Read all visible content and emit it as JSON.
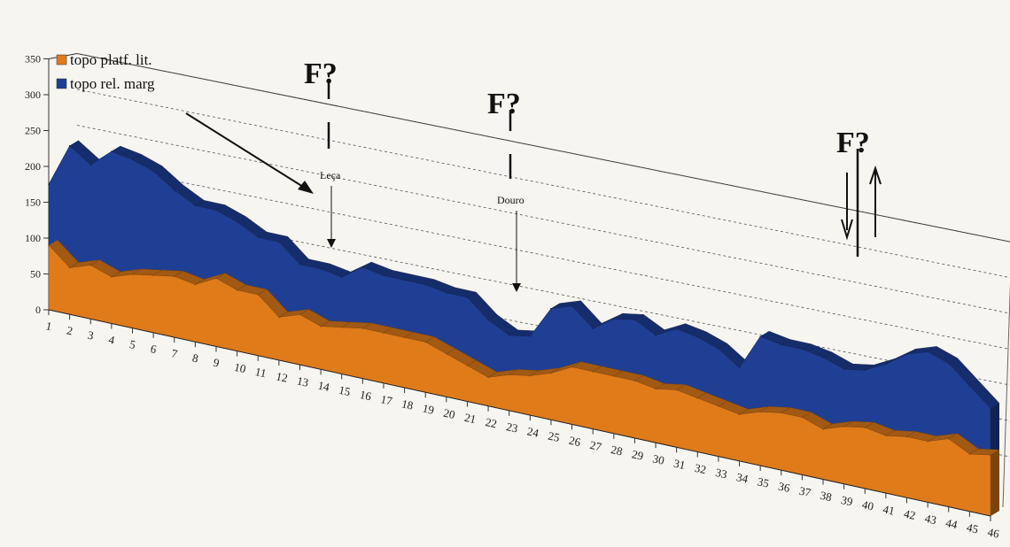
{
  "chart_data": {
    "type": "area",
    "render": "3d-area",
    "ylim": [
      0,
      350
    ],
    "yticks": [
      0,
      50,
      100,
      150,
      200,
      250,
      300,
      350
    ],
    "grid": true,
    "legend_position": "top-left",
    "x": [
      1,
      2,
      3,
      4,
      5,
      6,
      7,
      8,
      9,
      10,
      11,
      12,
      13,
      14,
      15,
      16,
      17,
      18,
      19,
      20,
      21,
      22,
      23,
      24,
      25,
      26,
      27,
      28,
      29,
      30,
      31,
      32,
      33,
      34,
      35,
      36,
      37,
      38,
      39,
      40,
      41,
      42,
      43,
      44,
      45,
      46
    ],
    "series": [
      {
        "name": "topo platf. lit.",
        "color": "#e07b1a",
        "values": [
          90,
          65,
          75,
          65,
          75,
          80,
          85,
          80,
          95,
          85,
          85,
          60,
          70,
          60,
          65,
          70,
          70,
          70,
          70,
          60,
          50,
          40,
          50,
          55,
          65,
          80,
          80,
          80,
          80,
          75,
          80,
          75,
          70,
          65,
          75,
          80,
          80,
          70,
          80,
          85,
          80,
          85,
          85,
          95,
          80,
          85
        ]
      },
      {
        "name": "topo rel. marg",
        "color": "#1f3f94",
        "values": [
          175,
          235,
          215,
          240,
          235,
          225,
          205,
          190,
          190,
          180,
          165,
          165,
          140,
          140,
          135,
          155,
          150,
          150,
          150,
          145,
          145,
          120,
          105,
          110,
          155,
          165,
          140,
          160,
          165,
          150,
          165,
          160,
          150,
          130,
          180,
          175,
          175,
          170,
          160,
          165,
          180,
          200,
          210,
          200,
          175,
          150
        ]
      }
    ],
    "annotations": [
      {
        "text": "F?",
        "kind": "fault",
        "near_x": 15
      },
      {
        "text": "F?",
        "kind": "fault",
        "near_x": 24
      },
      {
        "text": "F?",
        "kind": "fault",
        "near_x": 40
      },
      {
        "text": "Leça",
        "kind": "river",
        "near_x": 15
      },
      {
        "text": "Douro",
        "kind": "river",
        "near_x": 24
      }
    ]
  }
}
